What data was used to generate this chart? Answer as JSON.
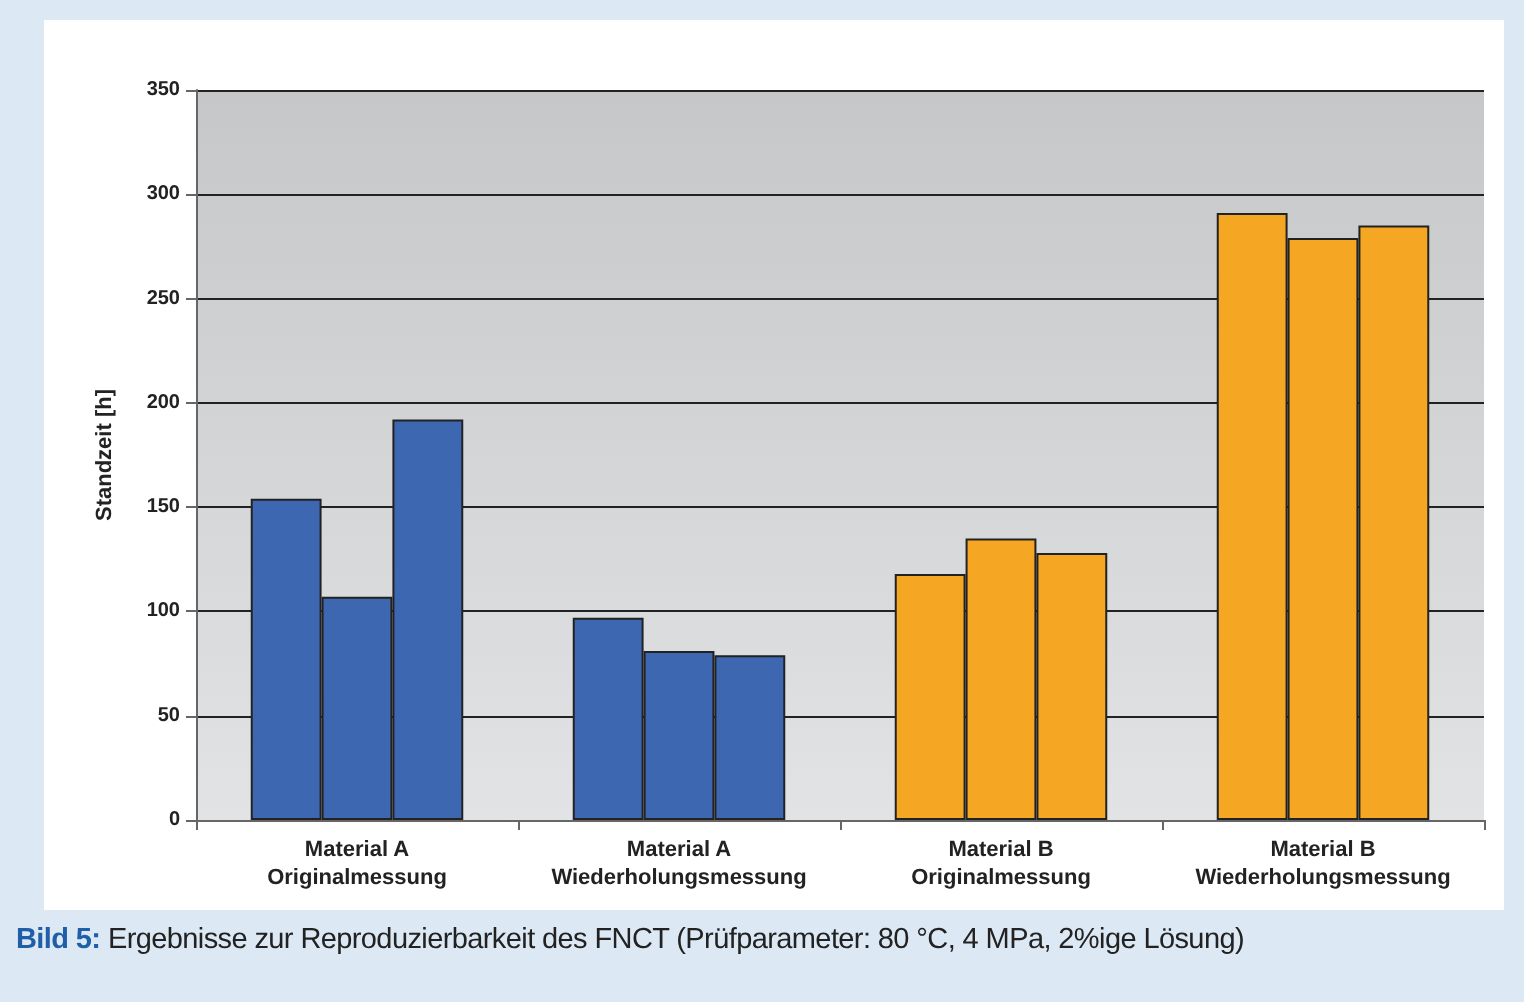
{
  "chart_data": {
    "type": "bar",
    "ylabel": "Standzeit [h]",
    "categories": [
      "Material A\nOriginalmessung",
      "Material A\nWiederholungsmessung",
      "Material B\nOriginalmessung",
      "Material B\nWiederholungsmessung"
    ],
    "series": [
      {
        "colors": [
          "#3d67b1",
          "#3d67b1",
          "#f5a623",
          "#f5a623"
        ],
        "values": [
          154,
          97,
          118,
          291
        ]
      },
      {
        "colors": [
          "#3d67b1",
          "#3d67b1",
          "#f5a623",
          "#f5a623"
        ],
        "values": [
          107,
          81,
          135,
          279
        ]
      },
      {
        "colors": [
          "#3d67b1",
          "#3d67b1",
          "#f5a623",
          "#f5a623"
        ],
        "values": [
          192,
          79,
          128,
          285
        ]
      }
    ],
    "ylim": [
      0,
      350
    ],
    "yticks": [
      0,
      50,
      100,
      150,
      200,
      250,
      300,
      350
    ],
    "grid": "y",
    "annotations": [
      "Bild 5: Ergebnisse zur Reproduzierbarkeit des FNCT (Prüfparameter: 80 °C, 4 MPa, 2%ige Lösung)"
    ]
  }
}
